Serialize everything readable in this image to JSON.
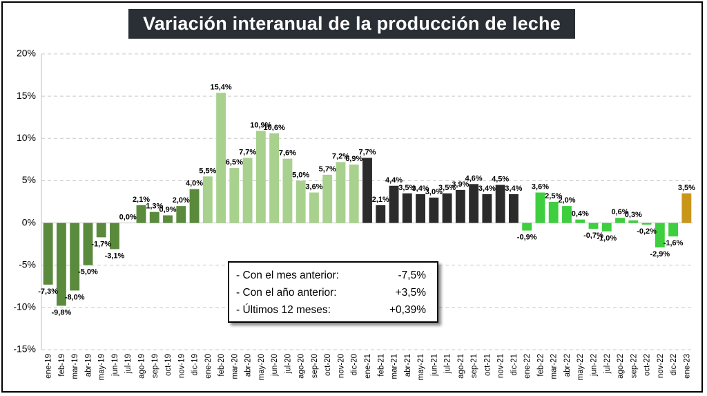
{
  "chart_data": {
    "type": "bar",
    "title": "Variación interanual de la producción de leche",
    "xlabel": "",
    "ylabel": "",
    "ylim": [
      -15,
      20
    ],
    "ytick_values": [
      20,
      15,
      10,
      5,
      0,
      -5,
      -10,
      -15
    ],
    "ytick_labels": [
      "20%",
      "15%",
      "10%",
      "5%",
      "0%",
      "-5%",
      "-10%",
      "-15%"
    ],
    "grid": true,
    "categories": [
      "ene-19",
      "feb-19",
      "mar-19",
      "abr-19",
      "may-19",
      "jun-19",
      "jul-19",
      "ago-19",
      "sep-19",
      "oct-19",
      "nov-19",
      "dic-19",
      "ene-20",
      "feb-20",
      "mar-20",
      "abr-20",
      "may-20",
      "jun-20",
      "jul-20",
      "ago-20",
      "sep-20",
      "oct-20",
      "nov-20",
      "dic-20",
      "ene-21",
      "feb-21",
      "mar-21",
      "abr-21",
      "may-21",
      "jun-21",
      "jul-21",
      "ago-21",
      "sep-21",
      "oct-21",
      "nov-21",
      "dic-21",
      "ene-22",
      "feb-22",
      "mar-22",
      "abr-22",
      "may-22",
      "jun-22",
      "jul-22",
      "ago-22",
      "sep-22",
      "oct-22",
      "nov-22",
      "dic-22",
      "ene-23"
    ],
    "values": [
      -7.3,
      -9.8,
      -8.0,
      -5.0,
      -1.7,
      -3.1,
      0.0,
      2.1,
      1.3,
      0.9,
      2.0,
      4.0,
      5.5,
      15.4,
      6.5,
      7.7,
      10.9,
      10.6,
      7.6,
      5.0,
      3.6,
      5.7,
      7.2,
      6.9,
      7.7,
      2.1,
      4.4,
      3.5,
      3.4,
      3.0,
      3.5,
      3.9,
      4.6,
      3.4,
      4.5,
      3.4,
      -0.9,
      3.6,
      2.5,
      2.0,
      0.4,
      -0.7,
      -1.0,
      0.6,
      0.3,
      -0.2,
      -2.9,
      -1.6,
      3.5
    ],
    "labels": [
      "-7,3%",
      "-9,8%",
      "-8,0%",
      "-5,0%",
      "-1,7%",
      "-3,1%",
      "0,0%",
      "2,1%",
      "1,3%",
      "0,9%",
      "2,0%",
      "4,0%",
      "5,5%",
      "15,4%",
      "6,5%",
      "7,7%",
      "10,9%",
      "10,6%",
      "7,6%",
      "5,0%",
      "3,6%",
      "5,7%",
      "7,2%",
      "6,9%",
      "7,7%",
      "2,1%",
      "4,4%",
      "3,5%",
      "3,4%",
      "3,0%",
      "3,5%",
      "3,9%",
      "4,6%",
      "3,4%",
      "4,5%",
      "3,4%",
      "-0,9%",
      "3,6%",
      "2,5%",
      "2,0%",
      "0,4%",
      "-0,7%",
      "-1,0%",
      "0,6%",
      "0,3%",
      "-0,2%",
      "-2,9%",
      "-1,6%",
      "3,5%"
    ],
    "series_colors": {
      "2019": "#5a8a3c",
      "2020": "#a9d18e",
      "2021": "#2b2b2b",
      "2022": "#3ecf3e",
      "2023": "#c9961a"
    },
    "bar_colors": [
      "#5a8a3c",
      "#5a8a3c",
      "#5a8a3c",
      "#5a8a3c",
      "#5a8a3c",
      "#5a8a3c",
      "#5a8a3c",
      "#5a8a3c",
      "#5a8a3c",
      "#5a8a3c",
      "#5a8a3c",
      "#5a8a3c",
      "#a9d18e",
      "#a9d18e",
      "#a9d18e",
      "#a9d18e",
      "#a9d18e",
      "#a9d18e",
      "#a9d18e",
      "#a9d18e",
      "#a9d18e",
      "#a9d18e",
      "#a9d18e",
      "#a9d18e",
      "#2b2b2b",
      "#2b2b2b",
      "#2b2b2b",
      "#2b2b2b",
      "#2b2b2b",
      "#2b2b2b",
      "#2b2b2b",
      "#2b2b2b",
      "#2b2b2b",
      "#2b2b2b",
      "#2b2b2b",
      "#2b2b2b",
      "#3ecf3e",
      "#3ecf3e",
      "#3ecf3e",
      "#3ecf3e",
      "#3ecf3e",
      "#3ecf3e",
      "#3ecf3e",
      "#3ecf3e",
      "#3ecf3e",
      "#3ecf3e",
      "#3ecf3e",
      "#3ecf3e",
      "#c9961a"
    ]
  },
  "infobox": {
    "rows": [
      {
        "label": "- Con el mes anterior:",
        "value": "-7,5%"
      },
      {
        "label": "- Con el año anterior:",
        "value": "+3,5%"
      },
      {
        "label": "- Últimos 12 meses:",
        "value": "+0,39%"
      }
    ]
  }
}
